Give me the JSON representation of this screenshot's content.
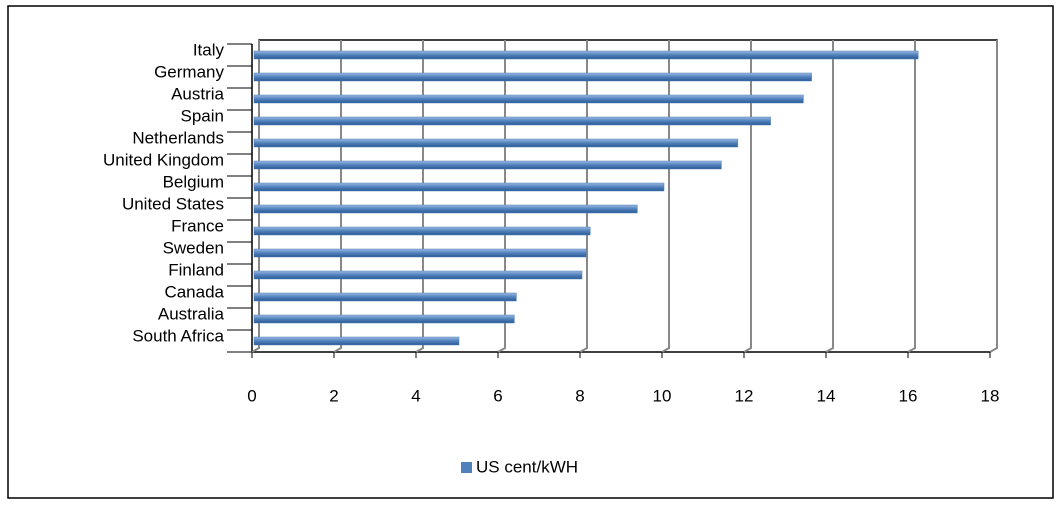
{
  "chart_data": {
    "type": "bar",
    "orientation": "horizontal",
    "categories": [
      "Italy",
      "Germany",
      "Austria",
      "Spain",
      "Netherlands",
      "United Kingdom",
      "Belgium",
      "United States",
      "France",
      "Sweden",
      "Finland",
      "Canada",
      "Australia",
      "South Africa"
    ],
    "series": [
      {
        "name": "US cent/kWH",
        "color": "#4f81bd",
        "values": [
          16.2,
          13.6,
          13.4,
          12.6,
          11.8,
          11.4,
          10.0,
          9.35,
          8.2,
          8.1,
          8.0,
          6.4,
          6.35,
          5.0
        ]
      }
    ],
    "xlim": [
      0,
      18
    ],
    "xticks": [
      0,
      2,
      4,
      6,
      8,
      10,
      12,
      14,
      16,
      18
    ],
    "grid": true,
    "legend": "bottom"
  }
}
